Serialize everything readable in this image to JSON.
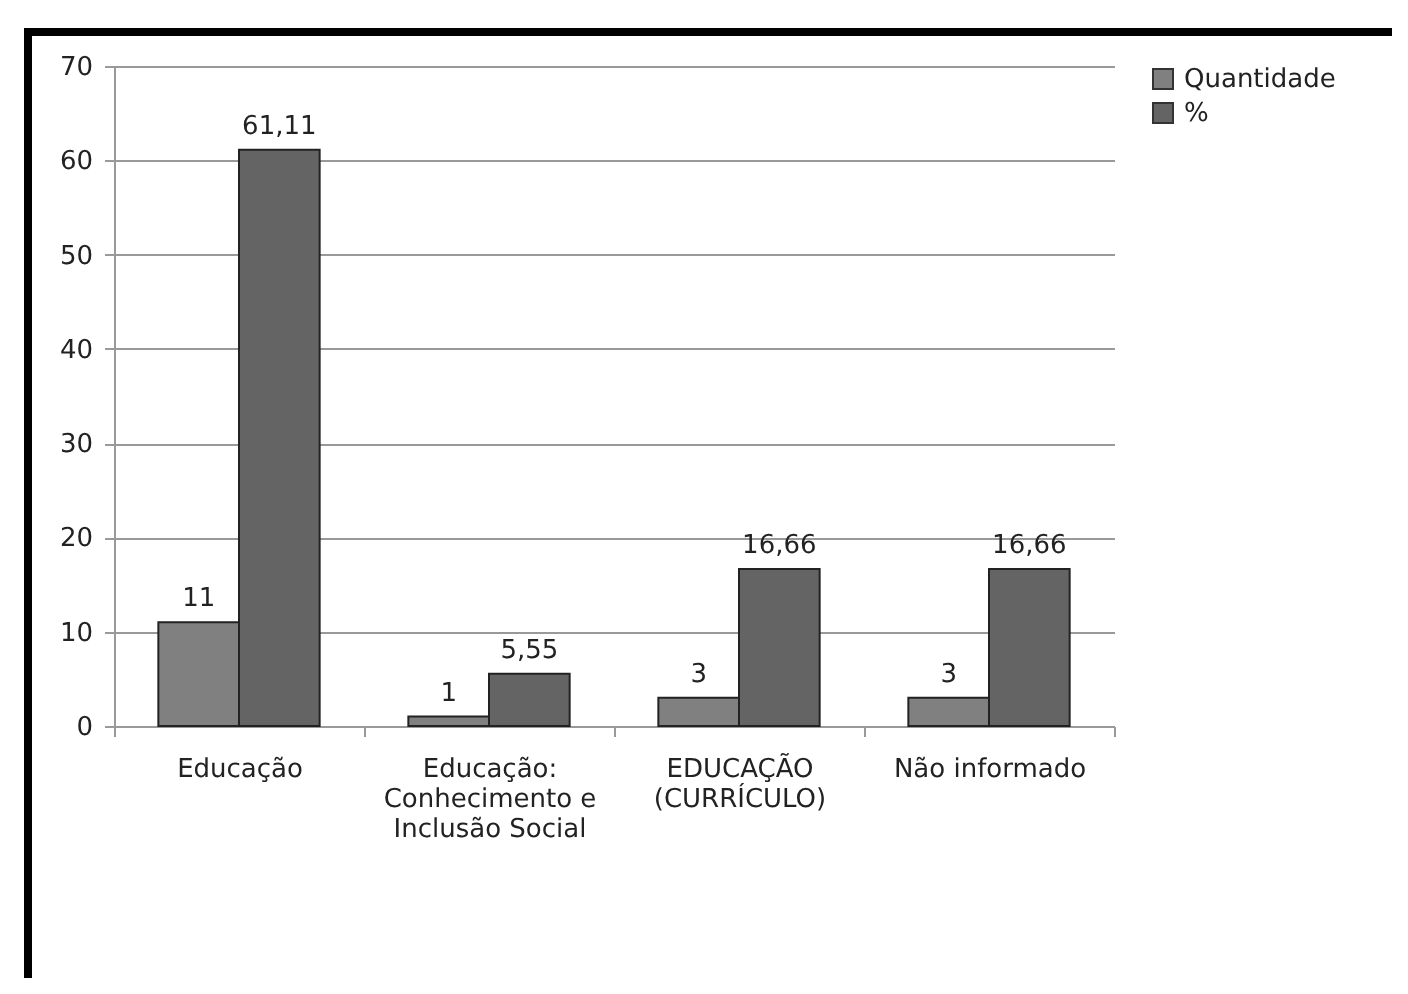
{
  "chart_data": {
    "type": "bar",
    "categories": [
      "Educação",
      "Educação: Conhecimento e Inclusão Social",
      "EDUCAÇÃO (CURRÍCULO)",
      "Não informado"
    ],
    "series": [
      {
        "name": "Quantidade",
        "color": "#808080",
        "values": [
          11,
          1,
          3,
          3
        ],
        "value_labels": [
          "11",
          "1",
          "3",
          "3"
        ]
      },
      {
        "name": "%",
        "color": "#646464",
        "values": [
          61.11,
          5.55,
          16.66,
          16.66
        ],
        "value_labels": [
          "61,11",
          "5,55",
          "16,66",
          "16,66"
        ]
      }
    ],
    "ylim": [
      0,
      70
    ],
    "yticks": [
      0,
      10,
      20,
      30,
      40,
      50,
      60,
      70
    ],
    "grid": "y",
    "legend": "right"
  }
}
